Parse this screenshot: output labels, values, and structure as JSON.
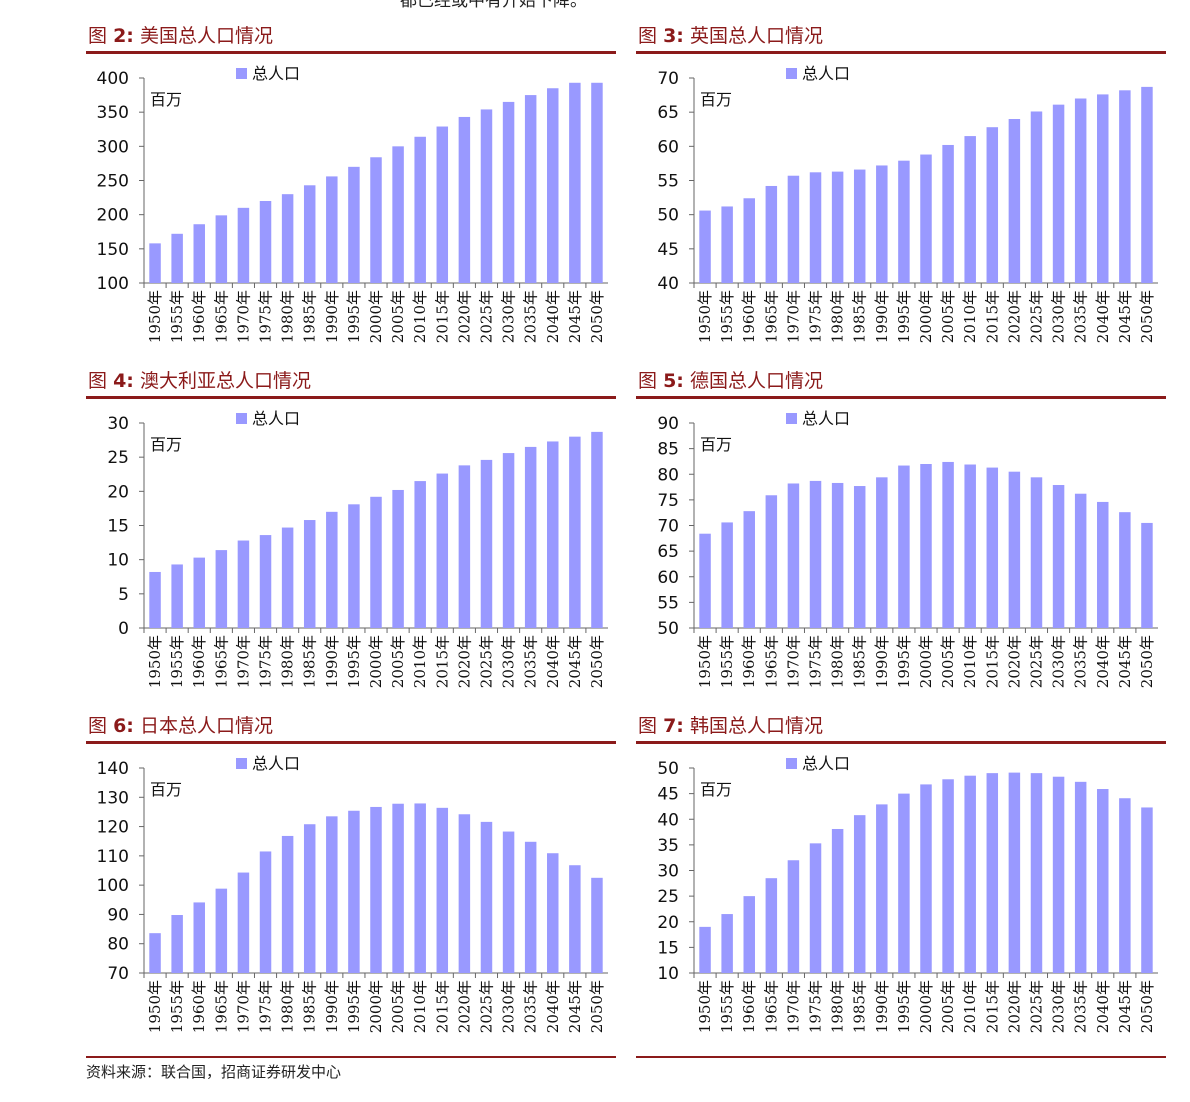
{
  "top_fragment": "都已经或中有开始下降。",
  "source": "资料来源：联合国，招商证券研发中心",
  "colors": {
    "bar": "#9999ff",
    "title": "#8b1a1a",
    "axis": "#666666"
  },
  "chart_data": [
    {
      "type": "bar",
      "fig_prefix": "图",
      "fig_num": "2:",
      "title": "美国总人口情况",
      "unit_label": "百万",
      "categories": [
        "1950年",
        "1955年",
        "1960年",
        "1965年",
        "1970年",
        "1975年",
        "1980年",
        "1985年",
        "1990年",
        "1995年",
        "2000年",
        "2005年",
        "2010年",
        "2015年",
        "2020年",
        "2025年",
        "2030年",
        "2035年",
        "2040年",
        "2045年",
        "2050年"
      ],
      "series": [
        {
          "name": "总人口",
          "values": [
            158,
            172,
            186,
            199,
            210,
            220,
            230,
            243,
            256,
            270,
            284,
            300,
            314,
            329,
            343,
            354,
            365,
            375,
            385,
            393,
            393
          ]
        }
      ],
      "ylim": [
        100,
        400
      ],
      "yticks": [
        100,
        150,
        200,
        250,
        300,
        350,
        400
      ]
    },
    {
      "type": "bar",
      "fig_prefix": "图",
      "fig_num": "3:",
      "title": "英国总人口情况",
      "unit_label": "百万",
      "categories": [
        "1950年",
        "1955年",
        "1960年",
        "1965年",
        "1970年",
        "1975年",
        "1980年",
        "1985年",
        "1990年",
        "1995年",
        "2000年",
        "2005年",
        "2010年",
        "2015年",
        "2020年",
        "2025年",
        "2030年",
        "2035年",
        "2040年",
        "2045年",
        "2050年"
      ],
      "series": [
        {
          "name": "总人口",
          "values": [
            50.6,
            51.2,
            52.4,
            54.2,
            55.7,
            56.2,
            56.3,
            56.6,
            57.2,
            57.9,
            58.8,
            60.2,
            61.5,
            62.8,
            64.0,
            65.1,
            66.1,
            67.0,
            67.6,
            68.2,
            68.7
          ]
        }
      ],
      "ylim": [
        40,
        70
      ],
      "yticks": [
        40,
        45,
        50,
        55,
        60,
        65,
        70
      ]
    },
    {
      "type": "bar",
      "fig_prefix": "图",
      "fig_num": "4:",
      "title": "澳大利亚总人口情况",
      "unit_label": "百万",
      "categories": [
        "1950年",
        "1955年",
        "1960年",
        "1965年",
        "1970年",
        "1975年",
        "1980年",
        "1985年",
        "1990年",
        "1995年",
        "2000年",
        "2005年",
        "2010年",
        "2015年",
        "2020年",
        "2025年",
        "2030年",
        "2035年",
        "2040年",
        "2045年",
        "2050年"
      ],
      "series": [
        {
          "name": "总人口",
          "values": [
            8.2,
            9.3,
            10.3,
            11.4,
            12.8,
            13.6,
            14.7,
            15.8,
            17.0,
            18.1,
            19.2,
            20.2,
            21.5,
            22.6,
            23.8,
            24.6,
            25.6,
            26.5,
            27.3,
            28.0,
            28.7
          ]
        }
      ],
      "ylim": [
        0,
        30
      ],
      "yticks": [
        0,
        5,
        10,
        15,
        20,
        25,
        30
      ]
    },
    {
      "type": "bar",
      "fig_prefix": "图",
      "fig_num": "5:",
      "title": "德国总人口情况",
      "unit_label": "百万",
      "categories": [
        "1950年",
        "1955年",
        "1960年",
        "1965年",
        "1970年",
        "1975年",
        "1980年",
        "1985年",
        "1990年",
        "1995年",
        "2000年",
        "2005年",
        "2010年",
        "2015年",
        "2020年",
        "2025年",
        "2030年",
        "2035年",
        "2040年",
        "2045年",
        "2050年"
      ],
      "series": [
        {
          "name": "总人口",
          "values": [
            68.4,
            70.6,
            72.8,
            75.9,
            78.2,
            78.7,
            78.3,
            77.7,
            79.4,
            81.7,
            82.0,
            82.4,
            81.9,
            81.3,
            80.5,
            79.4,
            77.9,
            76.2,
            74.6,
            72.6,
            70.5
          ]
        }
      ],
      "ylim": [
        50,
        90
      ],
      "yticks": [
        50,
        55,
        60,
        65,
        70,
        75,
        80,
        85,
        90
      ]
    },
    {
      "type": "bar",
      "fig_prefix": "图",
      "fig_num": "6:",
      "title": "日本总人口情况",
      "unit_label": "百万",
      "categories": [
        "1950年",
        "1955年",
        "1960年",
        "1965年",
        "1970年",
        "1975年",
        "1980年",
        "1985年",
        "1990年",
        "1995年",
        "2000年",
        "2005年",
        "2010年",
        "2015年",
        "2020年",
        "2025年",
        "2030年",
        "2035年",
        "2040年",
        "2045年",
        "2050年"
      ],
      "series": [
        {
          "name": "总人口",
          "values": [
            83.6,
            89.8,
            94.1,
            98.8,
            104.3,
            111.5,
            116.8,
            120.8,
            123.5,
            125.4,
            126.7,
            127.8,
            127.9,
            126.4,
            124.2,
            121.6,
            118.3,
            114.8,
            110.9,
            106.8,
            102.5
          ]
        }
      ],
      "ylim": [
        70,
        140
      ],
      "yticks": [
        70,
        80,
        90,
        100,
        110,
        120,
        130,
        140
      ]
    },
    {
      "type": "bar",
      "fig_prefix": "图",
      "fig_num": "7:",
      "title": "韩国总人口情况",
      "unit_label": "百万",
      "categories": [
        "1950年",
        "1955年",
        "1960年",
        "1965年",
        "1970年",
        "1975年",
        "1980年",
        "1985年",
        "1990年",
        "1995年",
        "2000年",
        "2005年",
        "2010年",
        "2015年",
        "2020年",
        "2025年",
        "2030年",
        "2035年",
        "2040年",
        "2045年",
        "2050年"
      ],
      "series": [
        {
          "name": "总人口",
          "values": [
            19.0,
            21.5,
            25.0,
            28.5,
            32.0,
            35.3,
            38.1,
            40.8,
            42.9,
            45.0,
            46.8,
            47.8,
            48.5,
            49.0,
            49.1,
            49.0,
            48.3,
            47.3,
            45.9,
            44.1,
            42.3
          ]
        }
      ],
      "ylim": [
        10,
        50
      ],
      "yticks": [
        10,
        15,
        20,
        25,
        30,
        35,
        40,
        45,
        50
      ]
    }
  ]
}
